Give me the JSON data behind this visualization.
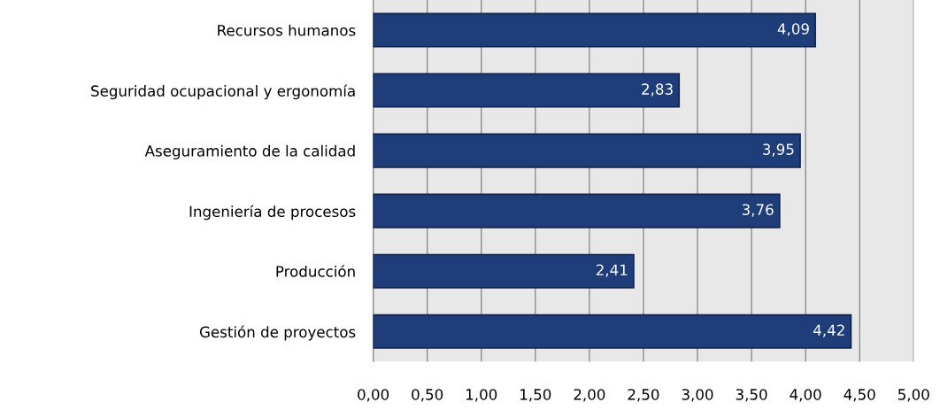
{
  "chart_data": {
    "type": "bar",
    "orientation": "horizontal",
    "categories": [
      "Recursos humanos",
      "Seguridad ocupacional y ergonomía",
      "Aseguramiento de la calidad",
      "Ingeniería de procesos",
      "Producción",
      "Gestión de proyectos"
    ],
    "values": [
      4.09,
      2.83,
      3.95,
      3.76,
      2.41,
      4.42
    ],
    "value_labels": [
      "4,09",
      "2,83",
      "3,95",
      "3,76",
      "2,41",
      "4,42"
    ],
    "color": "#1f3d78",
    "xlim": [
      0,
      5
    ],
    "xticks": [
      {
        "value": 0,
        "label": "0,00"
      },
      {
        "value": 0.5,
        "label": "0,50"
      },
      {
        "value": 1,
        "label": "1,00"
      },
      {
        "value": 1.5,
        "label": "1,50"
      },
      {
        "value": 2,
        "label": "2,00"
      },
      {
        "value": 2.5,
        "label": "2,50"
      },
      {
        "value": 3,
        "label": "3,00"
      },
      {
        "value": 3.5,
        "label": "3,50"
      },
      {
        "value": 4,
        "label": "4,00"
      },
      {
        "value": 4.5,
        "label": "4,50"
      },
      {
        "value": 5,
        "label": "5,00"
      }
    ],
    "grid": "x",
    "legend": false
  }
}
